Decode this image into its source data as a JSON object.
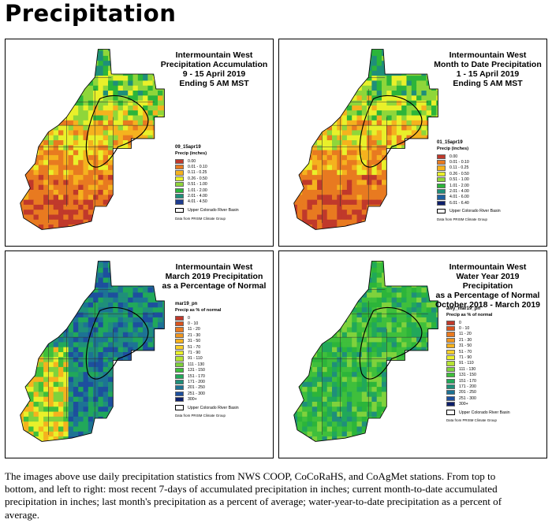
{
  "page_title": "Precipitation",
  "panels": [
    {
      "title_lines": [
        "Intermountain West",
        "Precipitation Accumulation",
        "9 - 15 April 2019",
        "Ending 5 AM MST"
      ],
      "legend_id": "09_15apr19",
      "legend_title": "Precip (inches)",
      "legend_items": [
        {
          "label": "0.00",
          "color": "#c0392b"
        },
        {
          "label": "0.01 - 0.10",
          "color": "#e87a20"
        },
        {
          "label": "0.11 - 0.25",
          "color": "#f5b21e"
        },
        {
          "label": "0.26 - 0.50",
          "color": "#e9f02a"
        },
        {
          "label": "0.51 - 1.00",
          "color": "#8fd63a"
        },
        {
          "label": "1.01 - 2.00",
          "color": "#2cb53a"
        },
        {
          "label": "2.01 - 4.00",
          "color": "#1f8f7a"
        },
        {
          "label": "4.01 - 4.50",
          "color": "#1d3c8f"
        }
      ],
      "basin_label": "Upper Colorado River Basin",
      "source": "Data from PRISM Climate Group",
      "palette": [
        "#c0392b",
        "#e87a20",
        "#e87a20",
        "#f5b21e",
        "#e9f02a",
        "#8fd63a",
        "#2cb53a",
        "#1f8f7a"
      ]
    },
    {
      "title_lines": [
        "Intermountain West",
        "Month to Date Precipitation",
        "1 - 15 April 2019",
        "Ending 5 AM MST"
      ],
      "legend_id": "01_15apr19",
      "legend_title": "Precip (inches)",
      "legend_items": [
        {
          "label": "0.00",
          "color": "#c0392b"
        },
        {
          "label": "0.01 - 0.10",
          "color": "#e87a20"
        },
        {
          "label": "0.11 - 0.25",
          "color": "#f5b21e"
        },
        {
          "label": "0.26 - 0.50",
          "color": "#e9f02a"
        },
        {
          "label": "0.51 - 1.00",
          "color": "#8fd63a"
        },
        {
          "label": "1.01 - 2.00",
          "color": "#2cb53a"
        },
        {
          "label": "2.01 - 4.00",
          "color": "#1f8f7a"
        },
        {
          "label": "4.01 - 6.00",
          "color": "#1d5fa0"
        },
        {
          "label": "6.01 - 6.40",
          "color": "#0d1f6b"
        }
      ],
      "basin_label": "Upper Colorado River Basin",
      "source": "Data from PRISM Climate Group",
      "palette": [
        "#c0392b",
        "#e87a20",
        "#e87a20",
        "#f5b21e",
        "#e9f02a",
        "#8fd63a",
        "#2cb53a",
        "#1f8f7a"
      ]
    },
    {
      "title_lines": [
        "Intermountain West",
        "March 2019 Precipitation",
        "as a Percentage of Normal"
      ],
      "legend_id": "mar19_pn",
      "legend_title": "Precip as % of normal",
      "legend_items": [
        {
          "label": "0",
          "color": "#c0392b"
        },
        {
          "label": "0 - 10",
          "color": "#d9531e"
        },
        {
          "label": "11 - 20",
          "color": "#e87a20"
        },
        {
          "label": "21 - 30",
          "color": "#f0961f"
        },
        {
          "label": "31 - 50",
          "color": "#f5b21e"
        },
        {
          "label": "51 - 70",
          "color": "#f7cf2a"
        },
        {
          "label": "71 - 90",
          "color": "#e9f02a"
        },
        {
          "label": "91 - 110",
          "color": "#b6e334"
        },
        {
          "label": "111 - 130",
          "color": "#7fd23c"
        },
        {
          "label": "131 - 150",
          "color": "#3fbf3c"
        },
        {
          "label": "151 - 170",
          "color": "#21a85a"
        },
        {
          "label": "171 - 200",
          "color": "#1f8f7a"
        },
        {
          "label": "201 - 250",
          "color": "#1d7394"
        },
        {
          "label": "251 - 300",
          "color": "#1d4f9e"
        },
        {
          "label": "300+",
          "color": "#0d1f6b"
        }
      ],
      "basin_label": "Upper Colorado River Basin",
      "source": "Data from PRISM Climate Group",
      "palette": [
        "#1d4f9e",
        "#1d7394",
        "#1f8f7a",
        "#21a85a",
        "#3fbf3c",
        "#7fd23c",
        "#e9f02a",
        "#f5b21e"
      ]
    },
    {
      "title_lines": [
        "Intermountain West",
        "Water Year 2019 Precipitation",
        "as a Percentage of Normal",
        "October 2018 - March 2019"
      ],
      "legend_id": "awy_mar19_pn",
      "legend_title": "Precip as % of normal",
      "legend_items": [
        {
          "label": "0",
          "color": "#c0392b"
        },
        {
          "label": "0 - 10",
          "color": "#d9531e"
        },
        {
          "label": "11 - 20",
          "color": "#e87a20"
        },
        {
          "label": "21 - 30",
          "color": "#f0961f"
        },
        {
          "label": "31 - 50",
          "color": "#f5b21e"
        },
        {
          "label": "51 - 70",
          "color": "#f7cf2a"
        },
        {
          "label": "71 - 90",
          "color": "#e9f02a"
        },
        {
          "label": "91 - 110",
          "color": "#b6e334"
        },
        {
          "label": "111 - 130",
          "color": "#7fd23c"
        },
        {
          "label": "131 - 150",
          "color": "#3fbf3c"
        },
        {
          "label": "151 - 170",
          "color": "#21a85a"
        },
        {
          "label": "171 - 200",
          "color": "#1f8f7a"
        },
        {
          "label": "201 - 250",
          "color": "#1d7394"
        },
        {
          "label": "251 - 300",
          "color": "#1d4f9e"
        },
        {
          "label": "300+",
          "color": "#0d1f6b"
        }
      ],
      "basin_label": "Upper Colorado River Basin",
      "source": "Data from PRISM Climate Group",
      "palette": [
        "#3fbf3c",
        "#21a85a",
        "#2cb53a",
        "#7fd23c",
        "#1f8f7a",
        "#1d7394",
        "#b6e334",
        "#1d4f9e"
      ]
    }
  ],
  "caption": "The images above use daily precipitation statistics from NWS COOP, CoCoRaHS, and CoAgMet stations. From top to bottom, and left to right: most recent 7-days of accumulated precipitation in inches; current month-to-date accumulated precipitation in inches; last month's precipitation as a percent of average; water-year-to-date precipitation as a percent of average."
}
